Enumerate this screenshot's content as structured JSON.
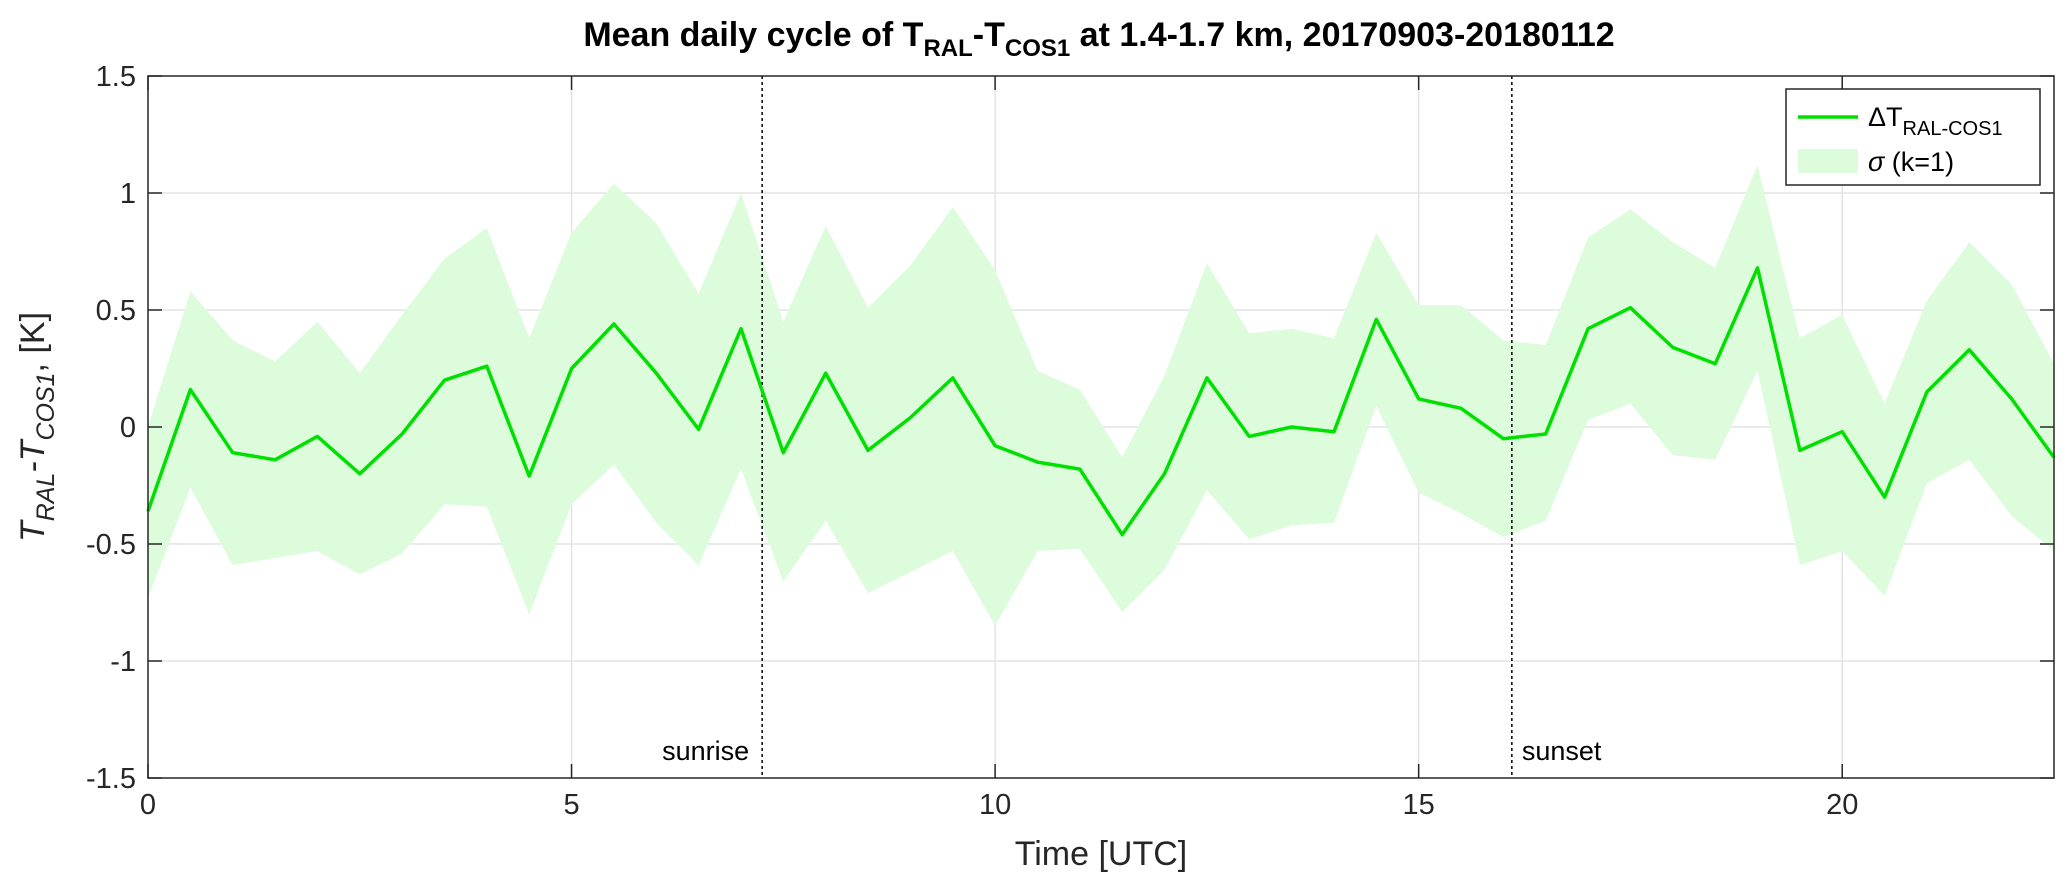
{
  "chart_data": {
    "type": "line",
    "title": {
      "main_before": "Mean daily cycle of T",
      "sub_a": "RAL",
      "dash": "-T",
      "sub_b": "COS1",
      "main_after": " at 1.4-1.7 km, 20170903-20180112"
    },
    "xlabel": "Time [UTC]",
    "ylabel": {
      "t1": "T",
      "s1": "RAL",
      "dash": "-T",
      "s2": "COS1",
      "tail": ", [K]"
    },
    "xlim": [
      0,
      22.5
    ],
    "ylim": [
      -1.5,
      1.5
    ],
    "x_ticks": [
      0,
      5,
      10,
      15,
      20
    ],
    "y_ticks": [
      -1.5,
      -1,
      -0.5,
      0,
      0.5,
      1,
      1.5
    ],
    "x_tick_labels": [
      "0",
      "5",
      "10",
      "15",
      "20"
    ],
    "y_tick_labels": [
      "-1.5",
      "-1",
      "-0.5",
      "0",
      "0.5",
      "1",
      "1.5"
    ],
    "grid": true,
    "legend_position": "top-right",
    "series": [
      {
        "legend_main": "ΔT",
        "legend_sub": "RAL-COS1",
        "color": "#00e000",
        "x": [
          0,
          0.5,
          1,
          1.5,
          2,
          2.5,
          3,
          3.5,
          4,
          4.5,
          5,
          5.5,
          6,
          6.5,
          7,
          7.5,
          8,
          8.5,
          9,
          9.5,
          10,
          10.5,
          11,
          11.5,
          12,
          12.5,
          13,
          13.5,
          14,
          14.5,
          15,
          15.5,
          16,
          16.5,
          17,
          17.5,
          18,
          18.5,
          19,
          19.5,
          20,
          20.5,
          21,
          21.5,
          22,
          22.5
        ],
        "y": [
          -0.36,
          0.16,
          -0.11,
          -0.14,
          -0.04,
          -0.2,
          -0.03,
          0.2,
          0.26,
          -0.21,
          0.25,
          0.44,
          0.23,
          -0.01,
          0.42,
          -0.11,
          0.23,
          -0.1,
          0.04,
          0.21,
          -0.08,
          -0.15,
          -0.18,
          -0.46,
          -0.2,
          0.21,
          -0.04,
          0.0,
          -0.02,
          0.46,
          0.12,
          0.08,
          -0.05,
          -0.03,
          0.42,
          0.51,
          0.34,
          0.27,
          0.68,
          -0.1,
          -0.02,
          -0.3,
          0.15,
          0.33,
          0.12,
          -0.13
        ],
        "band_upper": [
          0.0,
          0.58,
          0.37,
          0.28,
          0.45,
          0.23,
          0.48,
          0.72,
          0.85,
          0.38,
          0.83,
          1.04,
          0.87,
          0.57,
          1.0,
          0.45,
          0.86,
          0.51,
          0.69,
          0.94,
          0.67,
          0.24,
          0.16,
          -0.13,
          0.22,
          0.7,
          0.4,
          0.42,
          0.38,
          0.83,
          0.52,
          0.52,
          0.37,
          0.35,
          0.81,
          0.93,
          0.79,
          0.68,
          1.12,
          0.38,
          0.48,
          0.1,
          0.54,
          0.79,
          0.61,
          0.27
        ],
        "band_lower": [
          -0.73,
          -0.26,
          -0.59,
          -0.56,
          -0.53,
          -0.63,
          -0.54,
          -0.33,
          -0.34,
          -0.8,
          -0.33,
          -0.16,
          -0.41,
          -0.59,
          -0.18,
          -0.66,
          -0.4,
          -0.71,
          -0.62,
          -0.53,
          -0.85,
          -0.53,
          -0.52,
          -0.79,
          -0.61,
          -0.27,
          -0.48,
          -0.42,
          -0.41,
          0.09,
          -0.28,
          -0.37,
          -0.47,
          -0.4,
          0.03,
          0.1,
          -0.12,
          -0.14,
          0.24,
          -0.59,
          -0.53,
          -0.72,
          -0.24,
          -0.14,
          -0.38,
          -0.53
        ]
      }
    ],
    "band_legend_symbol": "σ",
    "band_legend_text": " (k=1)",
    "band_color": "#dcfcdc",
    "annotations": [
      {
        "label": "sunrise",
        "x": 7.25
      },
      {
        "label": "sunset",
        "x": 16.1
      }
    ]
  }
}
